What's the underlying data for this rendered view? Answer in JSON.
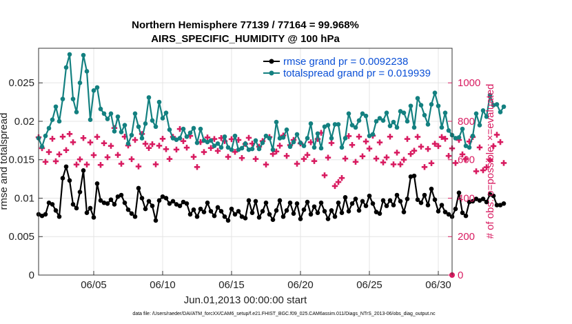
{
  "chart_data": {
    "type": "line",
    "title_line1": "Northern Hemisphere 77139 / 77164 = 99.968%",
    "title_line2": "AIRS_SPECIFIC_HUMIDITY @ 100 hPa",
    "xlabel": "Jun.01,2013 00:00:00 start",
    "ylabel_left": "rmse and totalspread",
    "ylabel_right": "# of obs: o=possible; ×=evaluated",
    "footer": "data file: /Users/raeder/DAI/ATM_forcXX/CAM6_setup/f.e21.FHIST_BGC.f09_025.CAM6assim.011/Diags_NTrS_2013-06/obs_diag_output.nc",
    "xlim": [
      1,
      31
    ],
    "ylim_left": [
      0,
      0.0295
    ],
    "ylim_right": [
      0,
      1180
    ],
    "x_ticks": [
      5,
      10,
      15,
      20,
      25,
      30
    ],
    "x_tick_labels": [
      "06/05",
      "06/10",
      "06/15",
      "06/20",
      "06/25",
      "06/30"
    ],
    "y_left_ticks": [
      0,
      0.005,
      0.01,
      0.015,
      0.02,
      0.025
    ],
    "y_left_tick_labels": [
      "0",
      "0.005",
      "0.01",
      "0.015",
      "0.02",
      "0.025"
    ],
    "y_right_ticks": [
      0,
      200,
      400,
      600,
      800,
      1000
    ],
    "y_right_tick_labels": [
      "0",
      "200",
      "400",
      "600",
      "800",
      "1000"
    ],
    "legend": [
      {
        "label": "rmse grand pr = 0.0092238",
        "color": "#000000"
      },
      {
        "label": "totalspread grand pr = 0.019939",
        "color": "#138080"
      }
    ],
    "colors": {
      "rmse": "#000000",
      "spread": "#138080",
      "obs": "#d81b60",
      "grid": "#e4e4e4",
      "axis": "#333333"
    },
    "series": [
      {
        "name": "rmse",
        "x_start": 1.0,
        "dx": 0.25,
        "values": [
          0.0079,
          0.0077,
          0.0079,
          0.0094,
          0.0092,
          0.0084,
          0.0076,
          0.0126,
          0.0141,
          0.0123,
          0.0092,
          0.0087,
          0.0108,
          0.0136,
          0.0081,
          0.0087,
          0.0075,
          0.0119,
          0.0097,
          0.0094,
          0.0093,
          0.0098,
          0.0092,
          0.0102,
          0.0104,
          0.0094,
          0.0085,
          0.008,
          0.0076,
          0.0113,
          0.01,
          0.0086,
          0.0096,
          0.009,
          0.0071,
          0.0097,
          0.0102,
          0.01,
          0.0093,
          0.0096,
          0.0092,
          0.009,
          0.0095,
          0.0093,
          0.0079,
          0.0085,
          0.0076,
          0.0086,
          0.0082,
          0.0094,
          0.0083,
          0.0077,
          0.0088,
          0.0083,
          0.0076,
          0.0071,
          0.0086,
          0.0079,
          0.0083,
          0.0076,
          0.0074,
          0.0097,
          0.0081,
          0.0096,
          0.0075,
          0.0083,
          0.0094,
          0.0079,
          0.0072,
          0.0084,
          0.0097,
          0.0076,
          0.0084,
          0.0094,
          0.008,
          0.0093,
          0.0073,
          0.0085,
          0.0095,
          0.0079,
          0.0089,
          0.0081,
          0.0094,
          0.0083,
          0.0073,
          0.0084,
          0.0076,
          0.0094,
          0.0081,
          0.0101,
          0.0083,
          0.0093,
          0.0099,
          0.0084,
          0.0096,
          0.009,
          0.0103,
          0.0093,
          0.0082,
          0.008,
          0.0097,
          0.009,
          0.0097,
          0.0091,
          0.0104,
          0.0096,
          0.0082,
          0.0099,
          0.0128,
          0.0129,
          0.0098,
          0.0094,
          0.0104,
          0.0091,
          0.0112,
          0.0098,
          0.0083,
          0.0091,
          0.0082,
          0.0079,
          0.0076,
          0.0086,
          0.0107,
          0.0081,
          0.0077,
          0.0095,
          0.0096,
          0.0099,
          0.0097,
          0.0099,
          0.0095,
          0.0105,
          0.0103,
          0.0091,
          0.0091,
          0.0093
        ]
      },
      {
        "name": "totalspread",
        "x_start": 1.0,
        "dx": 0.25,
        "values": [
          0.0178,
          0.0167,
          0.0181,
          0.0191,
          0.0202,
          0.0219,
          0.02,
          0.0229,
          0.027,
          0.0287,
          0.0229,
          0.0212,
          0.025,
          0.0286,
          0.0265,
          0.0202,
          0.024,
          0.0244,
          0.0216,
          0.021,
          0.0203,
          0.021,
          0.0187,
          0.0206,
          0.0186,
          0.0195,
          0.0171,
          0.0182,
          0.021,
          0.0193,
          0.0178,
          0.0197,
          0.0231,
          0.0201,
          0.0193,
          0.0225,
          0.0204,
          0.0211,
          0.0189,
          0.0178,
          0.0176,
          0.0178,
          0.019,
          0.018,
          0.0185,
          0.0191,
          0.0172,
          0.019,
          0.0175,
          0.0173,
          0.0175,
          0.0168,
          0.0171,
          0.0166,
          0.018,
          0.0166,
          0.0163,
          0.0181,
          0.0163,
          0.0165,
          0.0171,
          0.0163,
          0.0164,
          0.0175,
          0.0164,
          0.0172,
          0.0181,
          0.0178,
          0.0163,
          0.0199,
          0.0178,
          0.0179,
          0.0189,
          0.0167,
          0.0173,
          0.0183,
          0.0172,
          0.0168,
          0.0178,
          0.0197,
          0.0166,
          0.0184,
          0.0165,
          0.0193,
          0.0195,
          0.0178,
          0.0196,
          0.0196,
          0.0166,
          0.0178,
          0.021,
          0.0195,
          0.0192,
          0.0201,
          0.021,
          0.0207,
          0.0181,
          0.0183,
          0.02,
          0.0204,
          0.0201,
          0.0211,
          0.0194,
          0.0199,
          0.0192,
          0.0213,
          0.0211,
          0.02,
          0.022,
          0.0192,
          0.023,
          0.0221,
          0.0208,
          0.0196,
          0.0222,
          0.0237,
          0.022,
          0.0192,
          0.0211,
          0.0188,
          0.0182,
          0.0178,
          0.0179,
          0.019,
          0.0168,
          0.0166,
          0.0181,
          0.021,
          0.0195,
          0.0214,
          0.0206,
          0.0234,
          0.0221,
          0.0222,
          0.0212,
          0.0219
        ]
      },
      {
        "name": "obs_evaluated",
        "x_start": 1.0,
        "dx": 0.25,
        "values": [
          717,
          660,
          589,
          640,
          709,
          592,
          628,
          720,
          650,
          734,
          691,
          575,
          602,
          713,
          575,
          690,
          624,
          719,
          573,
          686,
          613,
          672,
          765,
          625,
          579,
          720,
          674,
          603,
          703,
          565,
          734,
          683,
          661,
          681,
          576,
          673,
          709,
          655,
          604,
          719,
          653,
          760,
          697,
          663,
          724,
          615,
          562,
          692,
          640,
          716,
          661,
          708,
          646,
          713,
          697,
          615,
          707,
          641,
          703,
          609,
          682,
          714,
          684,
          604,
          668,
          697,
          575,
          718,
          630,
          643,
          673,
          726,
          620,
          676,
          703,
          579,
          685,
          604,
          625,
          691,
          593,
          708,
          740,
          519,
          611,
          687,
          463,
          484,
          505,
          606,
          723,
          677,
          589,
          720,
          618,
          695,
          658,
          725,
          606,
          690,
          586,
          612,
          720,
          576,
          637,
          576,
          600,
          708,
          630,
          647,
          719,
          668,
          562,
          656,
          582,
          683,
          671,
          718,
          709,
          620,
          659,
          583,
          703,
          628,
          604,
          695,
          718,
          540,
          664,
          545,
          561,
          598,
          671,
          730,
          692,
          583
        ]
      }
    ],
    "obs_possible_marker": {
      "x": 31,
      "value": 0
    }
  }
}
